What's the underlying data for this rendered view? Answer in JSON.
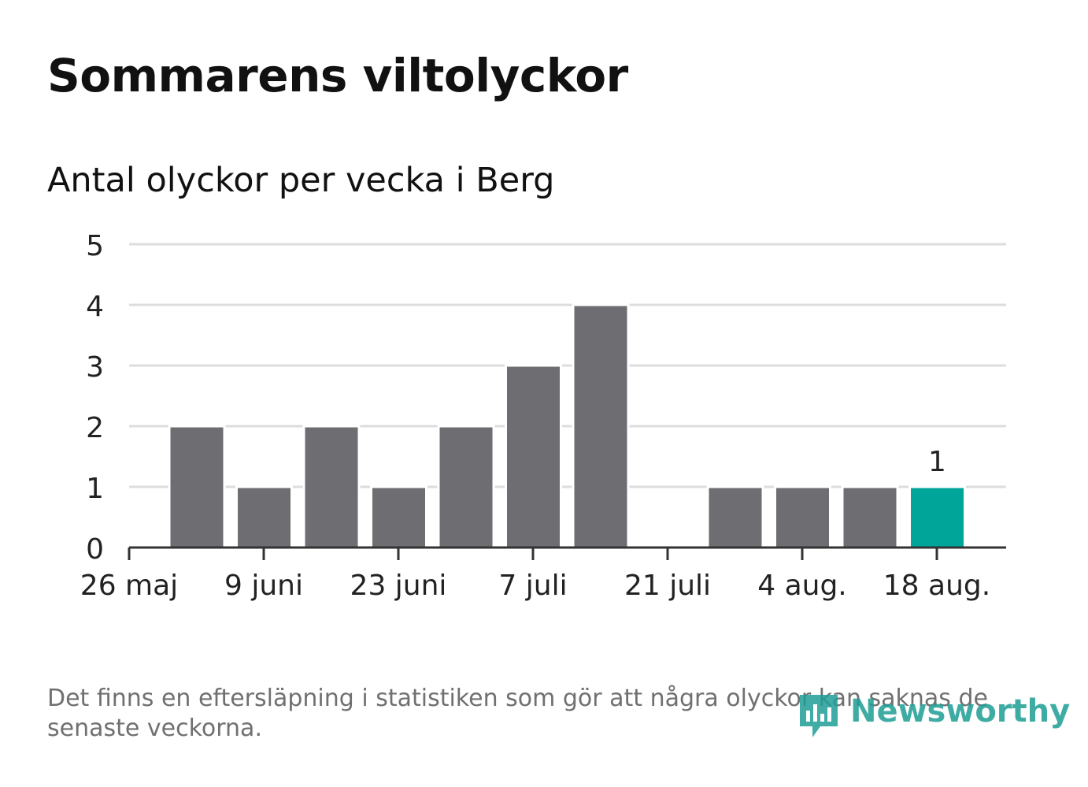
{
  "header": {
    "title": "Sommarens viltolyckor",
    "subtitle": "Antal olyckor per vecka i Berg"
  },
  "footer": {
    "note": "Det finns en eftersläpning i statistiken som gör att några olyckor kan saknas de senaste veckorna.",
    "brand": "Newsworthy"
  },
  "colors": {
    "bar": "#6e6d72",
    "highlight": "#00a59a",
    "grid": "#dddddd",
    "axis": "#333333",
    "brand": "#1e9e95"
  },
  "chart_data": {
    "type": "bar",
    "title": "Sommarens viltolyckor",
    "subtitle": "Antal olyckor per vecka i Berg",
    "xlabel": "",
    "ylabel": "",
    "ylim": [
      0,
      5
    ],
    "yticks": [
      "0",
      "1",
      "2",
      "3",
      "4",
      "5"
    ],
    "grid": true,
    "x_ticks": [
      "26 maj",
      "9 juni",
      "23 juni",
      "7 juli",
      "21 juli",
      "4 aug.",
      "18 aug."
    ],
    "values": [
      2,
      1,
      2,
      1,
      2,
      3,
      4,
      0,
      1,
      1,
      1,
      1
    ],
    "highlight_index": 11,
    "data_labels": [
      {
        "index": 11,
        "text": "1"
      }
    ]
  }
}
